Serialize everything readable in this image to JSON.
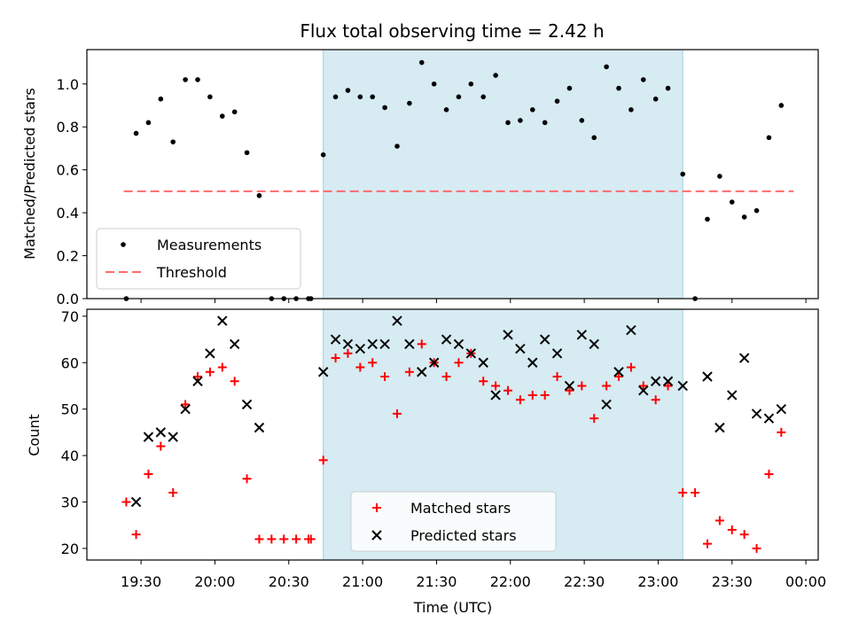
{
  "chart_data": {
    "title": "Flux total observing time = 2.42 h",
    "xlabel": "Time (UTC)",
    "x_ticks": [
      "19:30",
      "20:00",
      "20:30",
      "21:00",
      "21:30",
      "22:00",
      "22:30",
      "23:00",
      "23:30",
      "00:00"
    ],
    "x_range": [
      "19:08",
      "00:05"
    ],
    "highlight_span": [
      "20:44",
      "23:10"
    ],
    "highlight_color": "#add8e6",
    "top": {
      "type": "scatter",
      "ylabel": "Matched/Predicted stars",
      "ylim": [
        0,
        1.16
      ],
      "y_ticks": [
        0.0,
        0.2,
        0.4,
        0.6,
        0.8,
        1.0
      ],
      "threshold": {
        "name": "Threshold",
        "value": 0.5,
        "x": [
          "19:23",
          "23:55"
        ],
        "color": "#ff6b6b"
      },
      "series": [
        {
          "name": "Measurements",
          "color": "#000000",
          "points": [
            [
              "19:24",
              0.0
            ],
            [
              "19:28",
              0.77
            ],
            [
              "19:33",
              0.82
            ],
            [
              "19:38",
              0.93
            ],
            [
              "19:43",
              0.73
            ],
            [
              "19:48",
              1.02
            ],
            [
              "19:53",
              1.02
            ],
            [
              "19:58",
              0.94
            ],
            [
              "20:03",
              0.85
            ],
            [
              "20:08",
              0.87
            ],
            [
              "20:13",
              0.68
            ],
            [
              "20:18",
              0.48
            ],
            [
              "20:23",
              0.0
            ],
            [
              "20:28",
              0.0
            ],
            [
              "20:33",
              0.0
            ],
            [
              "20:38",
              0.0
            ],
            [
              "20:39",
              0.0
            ],
            [
              "20:44",
              0.67
            ],
            [
              "20:49",
              0.94
            ],
            [
              "20:54",
              0.97
            ],
            [
              "20:59",
              0.94
            ],
            [
              "21:04",
              0.94
            ],
            [
              "21:09",
              0.89
            ],
            [
              "21:14",
              0.71
            ],
            [
              "21:19",
              0.91
            ],
            [
              "21:24",
              1.1
            ],
            [
              "21:29",
              1.0
            ],
            [
              "21:34",
              0.88
            ],
            [
              "21:39",
              0.94
            ],
            [
              "21:44",
              1.0
            ],
            [
              "21:49",
              0.94
            ],
            [
              "21:54",
              1.04
            ],
            [
              "21:59",
              0.82
            ],
            [
              "22:04",
              0.83
            ],
            [
              "22:09",
              0.88
            ],
            [
              "22:14",
              0.82
            ],
            [
              "22:19",
              0.92
            ],
            [
              "22:24",
              0.98
            ],
            [
              "22:29",
              0.83
            ],
            [
              "22:34",
              0.75
            ],
            [
              "22:39",
              1.08
            ],
            [
              "22:44",
              0.98
            ],
            [
              "22:49",
              0.88
            ],
            [
              "22:54",
              1.02
            ],
            [
              "22:59",
              0.93
            ],
            [
              "23:04",
              0.98
            ],
            [
              "23:10",
              0.58
            ],
            [
              "23:15",
              0.0
            ],
            [
              "23:20",
              0.37
            ],
            [
              "23:25",
              0.57
            ],
            [
              "23:30",
              0.45
            ],
            [
              "23:35",
              0.38
            ],
            [
              "23:40",
              0.41
            ],
            [
              "23:45",
              0.75
            ],
            [
              "23:50",
              0.9
            ]
          ]
        }
      ],
      "legend": {
        "position": "lower-left",
        "entries": [
          "Measurements",
          "Threshold"
        ]
      }
    },
    "bottom": {
      "type": "scatter",
      "ylabel": "Count",
      "ylim": [
        17.5,
        71.5
      ],
      "y_ticks": [
        20,
        30,
        40,
        50,
        60,
        70
      ],
      "series": [
        {
          "name": "Matched stars",
          "marker": "plus",
          "color": "#ff0000",
          "points": [
            [
              "19:24",
              30
            ],
            [
              "19:28",
              23
            ],
            [
              "19:33",
              36
            ],
            [
              "19:38",
              42
            ],
            [
              "19:43",
              32
            ],
            [
              "19:48",
              51
            ],
            [
              "19:53",
              57
            ],
            [
              "19:58",
              58
            ],
            [
              "20:03",
              59
            ],
            [
              "20:08",
              56
            ],
            [
              "20:13",
              35
            ],
            [
              "20:18",
              22
            ],
            [
              "20:23",
              22
            ],
            [
              "20:28",
              22
            ],
            [
              "20:33",
              22
            ],
            [
              "20:38",
              22
            ],
            [
              "20:39",
              22
            ],
            [
              "20:44",
              39
            ],
            [
              "20:49",
              61
            ],
            [
              "20:54",
              62
            ],
            [
              "20:59",
              59
            ],
            [
              "21:04",
              60
            ],
            [
              "21:09",
              57
            ],
            [
              "21:14",
              49
            ],
            [
              "21:19",
              58
            ],
            [
              "21:24",
              64
            ],
            [
              "21:29",
              60
            ],
            [
              "21:34",
              57
            ],
            [
              "21:39",
              60
            ],
            [
              "21:44",
              62
            ],
            [
              "21:49",
              56
            ],
            [
              "21:54",
              55
            ],
            [
              "21:59",
              54
            ],
            [
              "22:04",
              52
            ],
            [
              "22:09",
              53
            ],
            [
              "22:14",
              53
            ],
            [
              "22:19",
              57
            ],
            [
              "22:24",
              54
            ],
            [
              "22:29",
              55
            ],
            [
              "22:34",
              48
            ],
            [
              "22:39",
              55
            ],
            [
              "22:44",
              57
            ],
            [
              "22:49",
              59
            ],
            [
              "22:54",
              55
            ],
            [
              "22:59",
              52
            ],
            [
              "23:04",
              55
            ],
            [
              "23:10",
              32
            ],
            [
              "23:15",
              32
            ],
            [
              "23:20",
              21
            ],
            [
              "23:25",
              26
            ],
            [
              "23:30",
              24
            ],
            [
              "23:35",
              23
            ],
            [
              "23:40",
              20
            ],
            [
              "23:45",
              36
            ],
            [
              "23:50",
              45
            ]
          ]
        },
        {
          "name": "Predicted stars",
          "marker": "x",
          "color": "#000000",
          "points": [
            [
              "19:28",
              30
            ],
            [
              "19:33",
              44
            ],
            [
              "19:38",
              45
            ],
            [
              "19:43",
              44
            ],
            [
              "19:48",
              50
            ],
            [
              "19:53",
              56
            ],
            [
              "19:58",
              62
            ],
            [
              "20:03",
              69
            ],
            [
              "20:08",
              64
            ],
            [
              "20:13",
              51
            ],
            [
              "20:18",
              46
            ],
            [
              "20:44",
              58
            ],
            [
              "20:49",
              65
            ],
            [
              "20:54",
              64
            ],
            [
              "20:59",
              63
            ],
            [
              "21:04",
              64
            ],
            [
              "21:09",
              64
            ],
            [
              "21:14",
              69
            ],
            [
              "21:19",
              64
            ],
            [
              "21:24",
              58
            ],
            [
              "21:29",
              60
            ],
            [
              "21:34",
              65
            ],
            [
              "21:39",
              64
            ],
            [
              "21:44",
              62
            ],
            [
              "21:49",
              60
            ],
            [
              "21:54",
              53
            ],
            [
              "21:59",
              66
            ],
            [
              "22:04",
              63
            ],
            [
              "22:09",
              60
            ],
            [
              "22:14",
              65
            ],
            [
              "22:19",
              62
            ],
            [
              "22:24",
              55
            ],
            [
              "22:29",
              66
            ],
            [
              "22:34",
              64
            ],
            [
              "22:39",
              51
            ],
            [
              "22:44",
              58
            ],
            [
              "22:49",
              67
            ],
            [
              "22:54",
              54
            ],
            [
              "22:59",
              56
            ],
            [
              "23:04",
              56
            ],
            [
              "23:10",
              55
            ],
            [
              "23:20",
              57
            ],
            [
              "23:25",
              46
            ],
            [
              "23:30",
              53
            ],
            [
              "23:35",
              61
            ],
            [
              "23:40",
              49
            ],
            [
              "23:45",
              48
            ],
            [
              "23:50",
              50
            ]
          ]
        }
      ],
      "legend": {
        "position": "lower-center",
        "entries": [
          "Matched stars",
          "Predicted stars"
        ]
      }
    }
  }
}
